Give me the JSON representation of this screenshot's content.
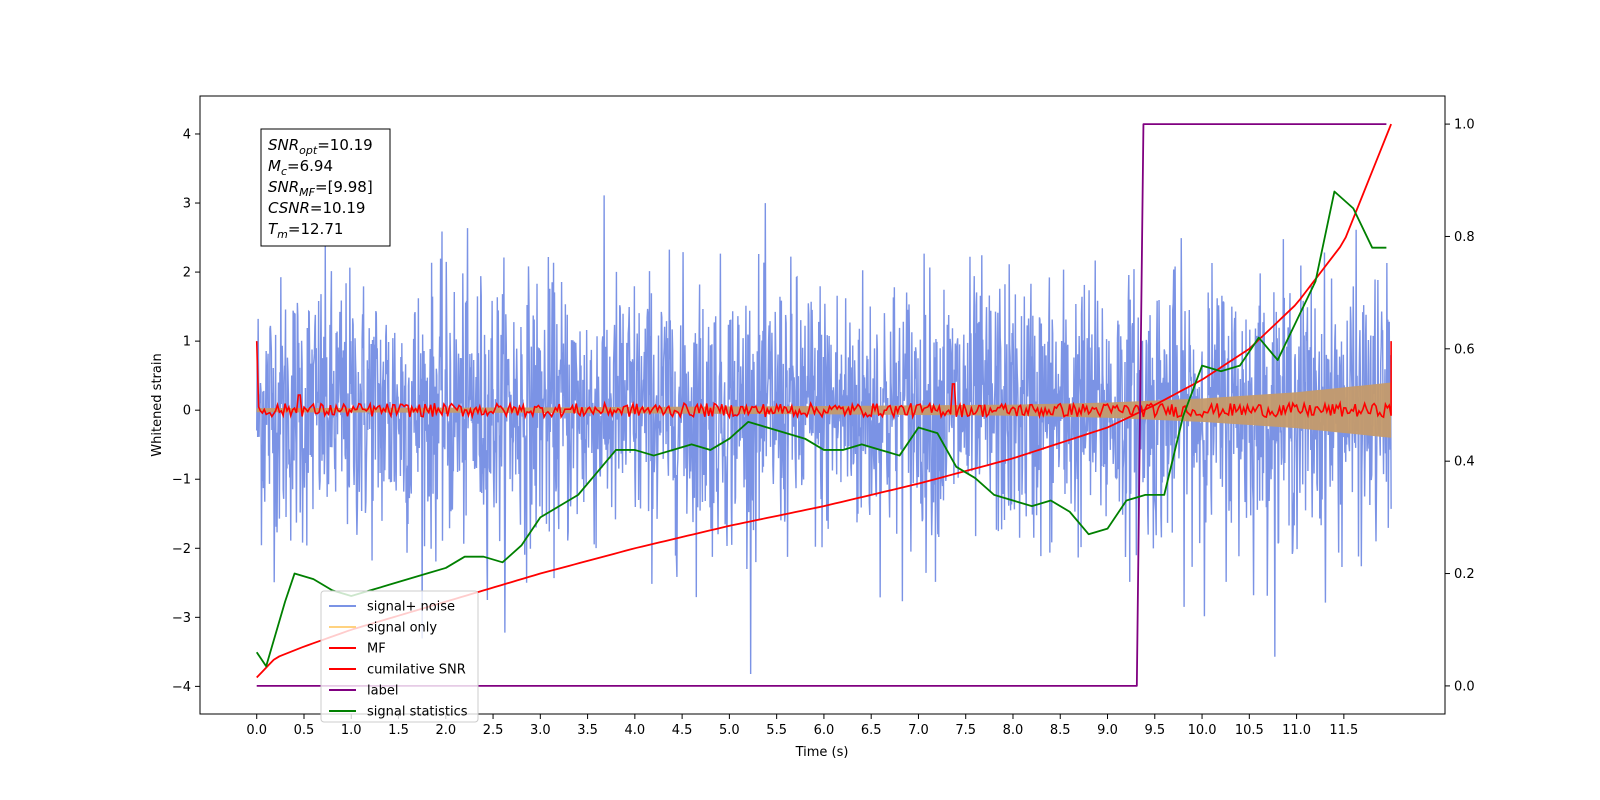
{
  "chart_data": {
    "type": "line",
    "xlabel": "Time (s)",
    "ylabel": "Whitened strain",
    "xlim": [
      -0.6,
      12.57
    ],
    "ylim": [
      -4.4,
      4.55
    ],
    "y2lim": [
      -0.05,
      1.05
    ],
    "x_ticks": [
      "0.0",
      "0.5",
      "1.0",
      "1.5",
      "2.0",
      "2.5",
      "3.0",
      "3.5",
      "4.0",
      "4.5",
      "5.0",
      "5.5",
      "6.0",
      "6.5",
      "7.0",
      "7.5",
      "8.0",
      "8.5",
      "9.0",
      "9.5",
      "10.0",
      "10.5",
      "11.0",
      "11.5"
    ],
    "y_ticks": [
      "4",
      "3",
      "2",
      "1",
      "0",
      "−1",
      "−2",
      "−3",
      "−4"
    ],
    "y2_ticks": [
      "1.0",
      "0.8",
      "0.6",
      "0.4",
      "0.2",
      "0.0"
    ],
    "legend_position": "lower-left",
    "annotation": {
      "lines": [
        {
          "base": "SNR",
          "sub": "opt",
          "value": "=10.19"
        },
        {
          "base": "M",
          "sub": "c",
          "value": "=6.94"
        },
        {
          "base": "SNR",
          "sub": "MF",
          "value": "=[9.98]"
        },
        {
          "base": "CSNR",
          "sub": "",
          "value": "=10.19"
        },
        {
          "base": "T",
          "sub": "m",
          "value": "=12.71"
        }
      ]
    },
    "series": [
      {
        "name": "signal+ noise",
        "color": "#7b93e5",
        "axis": "left",
        "x_range": [
          0.0,
          12.0
        ],
        "sigma": 1.0,
        "peak_min": -3.9,
        "peak_max": 4.15
      },
      {
        "name": "signal only",
        "color": "#c49a6c",
        "legend_color": "#ffd27f",
        "axis": "left",
        "x_range": [
          0.0,
          12.0
        ],
        "envelope": {
          "x": [
            0.0,
            3.0,
            6.0,
            8.0,
            9.0,
            10.0,
            11.0,
            12.0
          ],
          "amp": [
            0.03,
            0.04,
            0.06,
            0.08,
            0.11,
            0.17,
            0.26,
            0.4
          ]
        }
      },
      {
        "name": "MF",
        "color": "#ff0000",
        "axis": "left",
        "x_range": [
          0.0,
          12.0
        ],
        "start_value": 1.0,
        "end_value": 1.0,
        "amplitude": 0.1,
        "spikes": [
          [
            0.45,
            0.22
          ],
          [
            7.37,
            0.38
          ]
        ]
      },
      {
        "name": "cumilative SNR",
        "color": "#ff0000",
        "axis": "right",
        "x": [
          0.0,
          0.2,
          0.5,
          1.0,
          2.0,
          3.0,
          4.0,
          5.0,
          6.0,
          7.0,
          8.0,
          9.0,
          9.5,
          10.0,
          10.5,
          11.0,
          11.5,
          12.0
        ],
        "values": [
          0.015,
          0.05,
          0.07,
          0.1,
          0.15,
          0.2,
          0.245,
          0.285,
          0.32,
          0.36,
          0.405,
          0.46,
          0.5,
          0.545,
          0.6,
          0.68,
          0.79,
          1.0
        ]
      },
      {
        "name": "label",
        "color": "#800080",
        "axis": "right",
        "x": [
          0.0,
          9.31,
          9.38,
          11.95
        ],
        "values": [
          0.0,
          0.0,
          1.0,
          1.0
        ]
      },
      {
        "name": "signal statistics",
        "color": "#008000",
        "axis": "right",
        "x": [
          0.0,
          0.1,
          0.3,
          0.4,
          0.6,
          0.8,
          1.0,
          1.2,
          1.4,
          1.6,
          1.8,
          2.0,
          2.2,
          2.4,
          2.6,
          2.8,
          3.0,
          3.2,
          3.4,
          3.6,
          3.8,
          4.0,
          4.2,
          4.4,
          4.6,
          4.8,
          5.0,
          5.2,
          5.4,
          5.6,
          5.8,
          6.0,
          6.2,
          6.4,
          6.6,
          6.8,
          7.0,
          7.2,
          7.4,
          7.6,
          7.8,
          8.0,
          8.2,
          8.4,
          8.6,
          8.8,
          9.0,
          9.2,
          9.4,
          9.6,
          9.8,
          10.0,
          10.2,
          10.4,
          10.6,
          10.8,
          11.0,
          11.2,
          11.4,
          11.6,
          11.8,
          11.95
        ],
        "values": [
          0.06,
          0.035,
          0.15,
          0.2,
          0.19,
          0.17,
          0.16,
          0.17,
          0.18,
          0.19,
          0.2,
          0.21,
          0.23,
          0.23,
          0.22,
          0.25,
          0.3,
          0.32,
          0.34,
          0.38,
          0.42,
          0.42,
          0.41,
          0.42,
          0.43,
          0.42,
          0.44,
          0.47,
          0.46,
          0.45,
          0.44,
          0.42,
          0.42,
          0.43,
          0.42,
          0.41,
          0.46,
          0.45,
          0.39,
          0.37,
          0.34,
          0.33,
          0.32,
          0.33,
          0.31,
          0.27,
          0.28,
          0.33,
          0.34,
          0.34,
          0.48,
          0.57,
          0.56,
          0.57,
          0.62,
          0.58,
          0.65,
          0.72,
          0.88,
          0.85,
          0.78,
          0.78
        ]
      }
    ]
  }
}
